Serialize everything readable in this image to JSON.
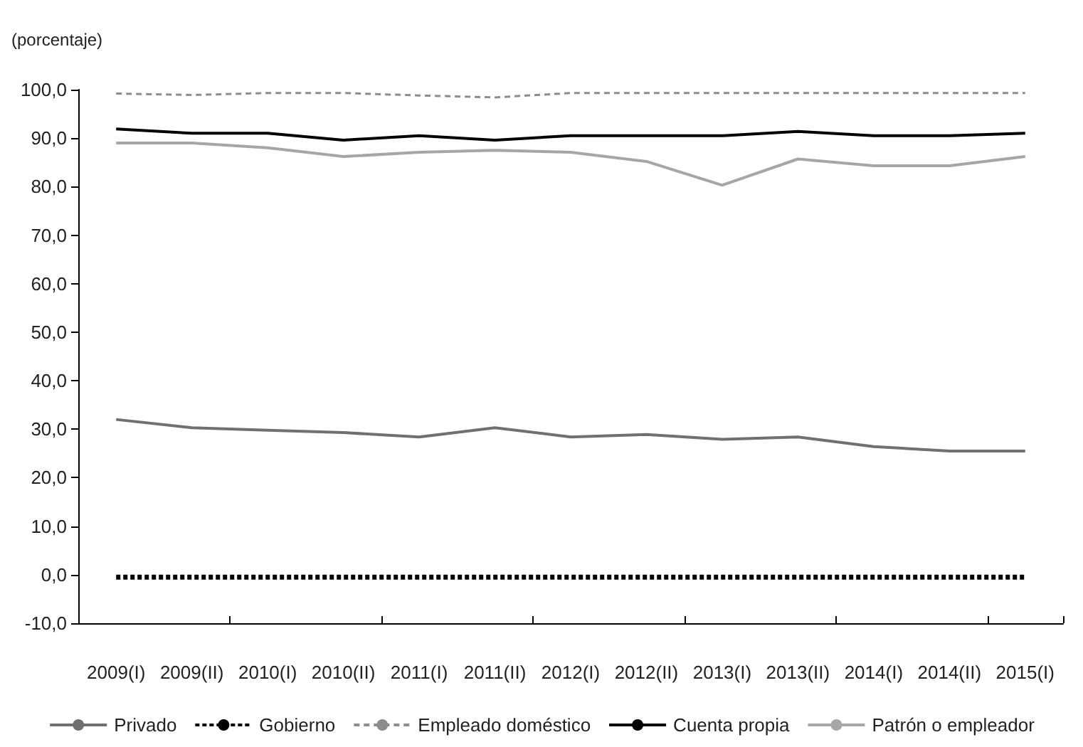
{
  "chart_data": {
    "type": "line",
    "ylabel": "(porcentaje)",
    "categories": [
      "2009(I)",
      "2009(II)",
      "2010(I)",
      "2010(II)",
      "2011(I)",
      "2011(II)",
      "2012(I)",
      "2012(II)",
      "2013(I)",
      "2013(II)",
      "2014(I)",
      "2014(II)",
      "2015(I)"
    ],
    "series": [
      {
        "name": "Privado",
        "color": "#707070",
        "line_style": "solid",
        "values": [
          32.0,
          30.3,
          29.8,
          29.3,
          28.4,
          30.3,
          28.4,
          28.9,
          27.9,
          28.4,
          26.4,
          25.5,
          25.5
        ]
      },
      {
        "name": "Gobierno",
        "color": "#000000",
        "line_style": "dotted",
        "values": [
          -0.5,
          -0.5,
          -0.5,
          -0.5,
          -0.5,
          -0.5,
          -0.5,
          -0.5,
          -0.5,
          -0.5,
          -0.5,
          -0.5,
          -0.5
        ]
      },
      {
        "name": "Empleado doméstico",
        "color": "#8c8c8c",
        "line_style": "dashed",
        "values": [
          99.2,
          98.9,
          99.3,
          99.3,
          98.8,
          98.4,
          99.3,
          99.3,
          99.3,
          99.3,
          99.3,
          99.3,
          99.3
        ]
      },
      {
        "name": "Cuenta propia",
        "color": "#000000",
        "line_style": "solid",
        "values": [
          91.9,
          91.0,
          91.0,
          89.6,
          90.5,
          89.6,
          90.5,
          90.5,
          90.5,
          91.4,
          90.5,
          90.5,
          91.0
        ]
      },
      {
        "name": "Patrón o empleador",
        "color": "#a6a6a6",
        "line_style": "solid",
        "values": [
          89.0,
          89.0,
          88.0,
          86.2,
          87.1,
          87.5,
          87.1,
          85.2,
          80.3,
          85.7,
          84.3,
          84.3,
          86.2
        ]
      }
    ],
    "ylim": [
      -10,
      100
    ],
    "yticks": [
      {
        "value": -10,
        "label": "-10,0"
      },
      {
        "value": 0,
        "label": "0,0"
      },
      {
        "value": 10,
        "label": "10,0"
      },
      {
        "value": 20,
        "label": "20,0"
      },
      {
        "value": 30,
        "label": "30,0"
      },
      {
        "value": 40,
        "label": "40,0"
      },
      {
        "value": 50,
        "label": "50,0"
      },
      {
        "value": 60,
        "label": "60,0"
      },
      {
        "value": 70,
        "label": "70,0"
      },
      {
        "value": 80,
        "label": "80,0"
      },
      {
        "value": 90,
        "label": "90,0"
      },
      {
        "value": 100,
        "label": "100,0"
      }
    ],
    "grid": false,
    "legend": "bottom",
    "marker": "none"
  }
}
